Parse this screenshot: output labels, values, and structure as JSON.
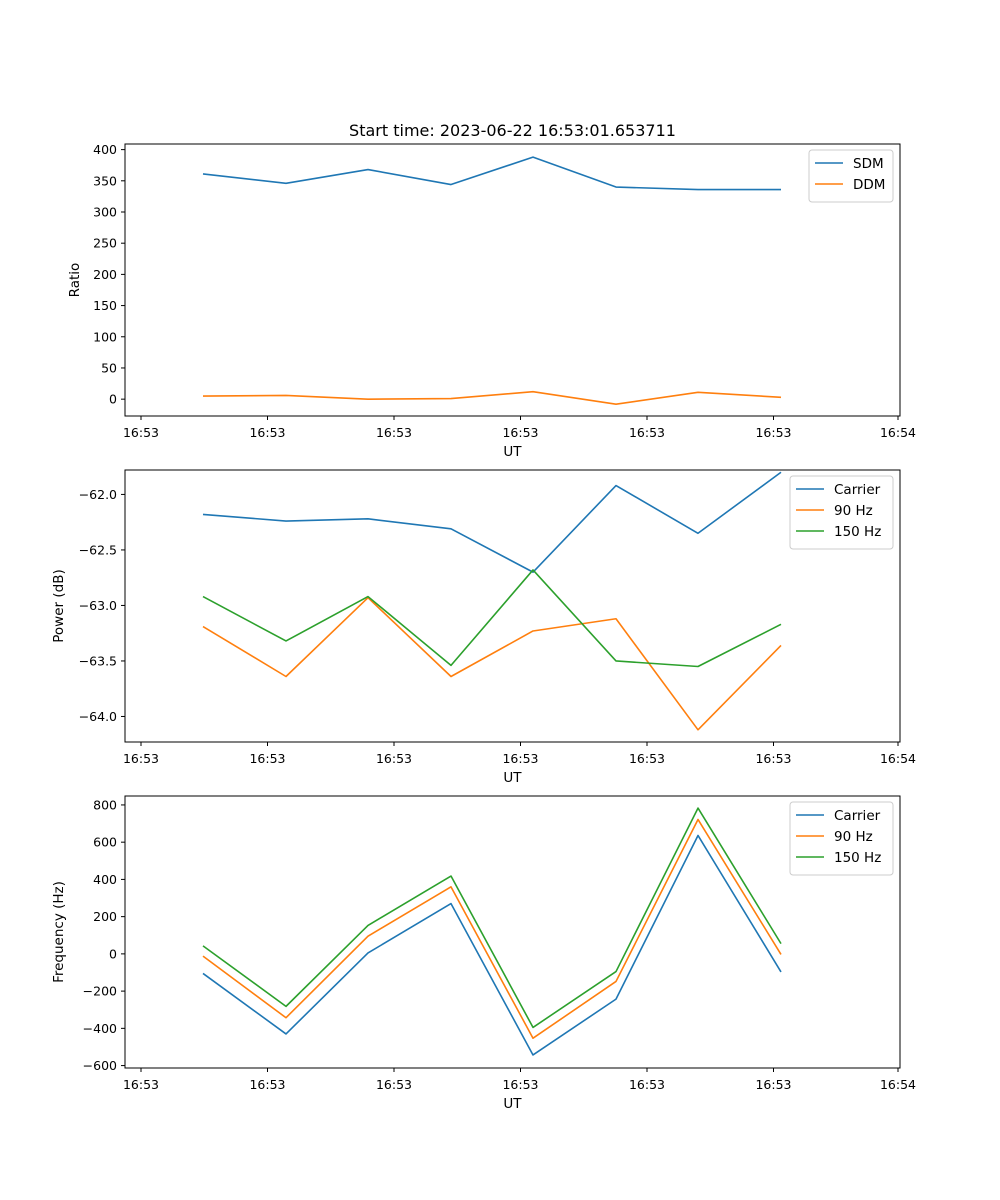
{
  "figure": {
    "title": "Start time: 2023-06-22 16:53:01.653711"
  },
  "chart_data": [
    {
      "type": "line",
      "title": "Start time: 2023-06-22 16:53:01.653711",
      "xlabel": "UT",
      "ylabel": "Ratio",
      "x_tick_labels": [
        "16:53",
        "16:53",
        "16:53",
        "16:53",
        "16:53",
        "16:53",
        "16:54"
      ],
      "y_ticks": [
        0,
        50,
        100,
        150,
        200,
        250,
        300,
        350,
        400
      ],
      "ylim": [
        -27,
        409
      ],
      "legend_position": "upper right",
      "grid": false,
      "series": [
        {
          "name": "SDM",
          "color": "#1f77b4",
          "values": [
            361,
            346,
            368,
            344,
            388,
            340,
            336,
            336
          ]
        },
        {
          "name": "DDM",
          "color": "#ff7f0e",
          "values": [
            5,
            6,
            0,
            1,
            12,
            -8,
            11,
            3
          ]
        }
      ]
    },
    {
      "type": "line",
      "xlabel": "UT",
      "ylabel": "Power (dB)",
      "x_tick_labels": [
        "16:53",
        "16:53",
        "16:53",
        "16:53",
        "16:53",
        "16:53",
        "16:54"
      ],
      "y_ticks": [
        -64.0,
        -63.5,
        -63.0,
        -62.5,
        -62.0
      ],
      "y_tick_labels": [
        "−64.0",
        "−63.5",
        "−63.0",
        "−62.5",
        "−62.0"
      ],
      "ylim": [
        -64.23,
        -61.78
      ],
      "legend_position": "upper right",
      "grid": false,
      "series": [
        {
          "name": "Carrier",
          "color": "#1f77b4",
          "values": [
            -62.18,
            -62.24,
            -62.22,
            -62.31,
            -62.7,
            -61.92,
            -62.35,
            -61.8
          ]
        },
        {
          "name": "90 Hz",
          "color": "#ff7f0e",
          "values": [
            -63.19,
            -63.64,
            -62.93,
            -63.64,
            -63.23,
            -63.12,
            -64.12,
            -63.36
          ]
        },
        {
          "name": "150 Hz",
          "color": "#2ca02c",
          "values": [
            -62.92,
            -63.32,
            -62.92,
            -63.54,
            -62.68,
            -63.5,
            -63.55,
            -63.17
          ]
        }
      ]
    },
    {
      "type": "line",
      "xlabel": "UT",
      "ylabel": "Frequency (Hz)",
      "x_tick_labels": [
        "16:53",
        "16:53",
        "16:53",
        "16:53",
        "16:53",
        "16:53",
        "16:54"
      ],
      "y_ticks": [
        -600,
        -400,
        -200,
        0,
        200,
        400,
        600,
        800
      ],
      "y_tick_labels": [
        "−600",
        "−400",
        "−200",
        "0",
        "200",
        "400",
        "600",
        "800"
      ],
      "ylim": [
        -613,
        848
      ],
      "legend_position": "upper right",
      "grid": false,
      "series": [
        {
          "name": "Carrier",
          "color": "#1f77b4",
          "values": [
            -105,
            -430,
            5,
            270,
            -543,
            -243,
            636,
            -97
          ]
        },
        {
          "name": "90 Hz",
          "color": "#ff7f0e",
          "values": [
            -12,
            -343,
            95,
            360,
            -453,
            -148,
            722,
            -3
          ]
        },
        {
          "name": "150 Hz",
          "color": "#2ca02c",
          "values": [
            43,
            -282,
            153,
            418,
            -395,
            -95,
            783,
            55
          ]
        }
      ]
    }
  ]
}
